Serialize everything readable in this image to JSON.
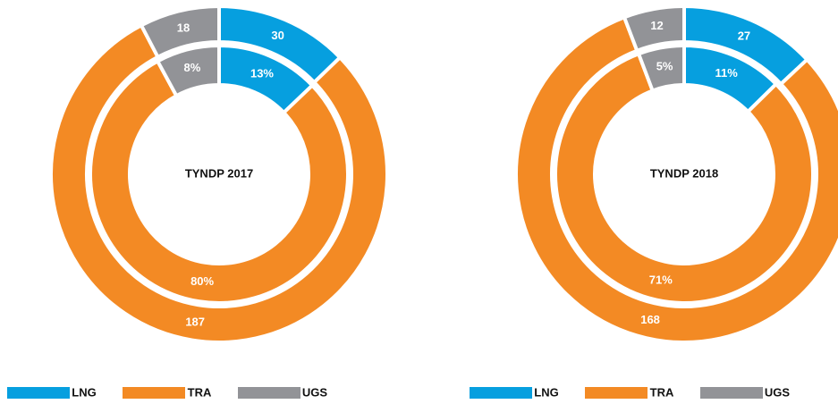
{
  "chart_data": [
    {
      "type": "donut",
      "title": "TYNDP 2017",
      "categories": [
        "LNG",
        "TRA",
        "UGS"
      ],
      "colors": [
        "#069fdf",
        "#f38a24",
        "#929397"
      ],
      "values": [
        30,
        187,
        18
      ],
      "inner_values": [
        13,
        80,
        8
      ],
      "inner_value_labels": [
        "13%",
        "80%",
        "8%"
      ]
    },
    {
      "type": "donut",
      "title": "TYNDP 2018",
      "categories": [
        "LNG",
        "TRA",
        "UGS"
      ],
      "colors": [
        "#069fdf",
        "#f38a24",
        "#929397"
      ],
      "values": [
        27,
        168,
        12
      ],
      "inner_values": [
        11,
        71,
        5
      ],
      "inner_value_labels": [
        "11%",
        "71%",
        "5%"
      ]
    }
  ]
}
